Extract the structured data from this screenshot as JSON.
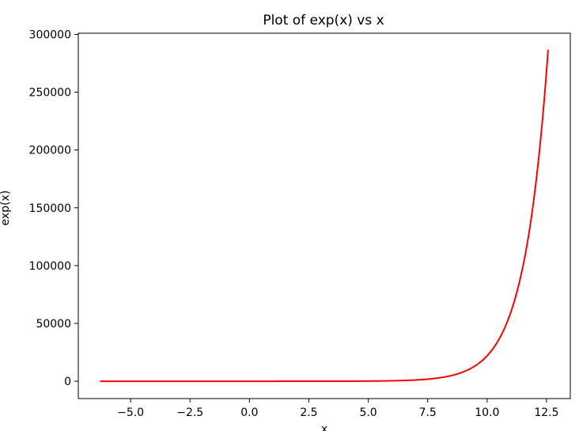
{
  "chart_data": {
    "type": "line",
    "title": "Plot of exp(x) vs x",
    "xlabel": "x",
    "ylabel": "exp(x)",
    "xlim": [
      -7.2,
      13.5
    ],
    "ylim": [
      -15000,
      301000
    ],
    "x_ticks": [
      -5.0,
      -2.5,
      0.0,
      2.5,
      5.0,
      7.5,
      10.0,
      12.5
    ],
    "x_tick_labels": [
      "−5.0",
      "−2.5",
      "0.0",
      "2.5",
      "5.0",
      "7.5",
      "10.0",
      "12.5"
    ],
    "y_ticks": [
      0,
      50000,
      100000,
      150000,
      200000,
      250000,
      300000
    ],
    "y_tick_labels": [
      "0",
      "50000",
      "100000",
      "150000",
      "200000",
      "250000",
      "300000"
    ],
    "grid": false,
    "series": [
      {
        "color": "#ff0000",
        "function": "exp(x)",
        "x_range": [
          -6.283,
          12.566
        ]
      }
    ]
  }
}
